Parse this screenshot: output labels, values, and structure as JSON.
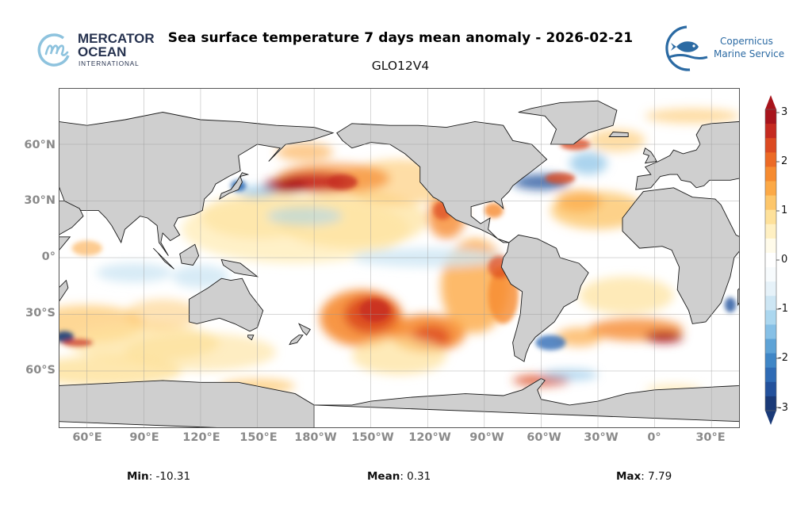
{
  "header": {
    "title": "Sea surface temperature 7 days mean anomaly - 2026-02-21",
    "subtitle": "GLO12V4"
  },
  "logos": {
    "left": {
      "line1": "MERCATOR",
      "line2": "OCEAN",
      "line3": "INTERNATIONAL",
      "icon": "mercator-m-icon"
    },
    "right": {
      "line1": "Copernicus",
      "line2": "Marine Service",
      "icon": "fish-wave-icon"
    }
  },
  "map": {
    "lat_labels": [
      "60°N",
      "30°N",
      "0°",
      "30°S",
      "60°S"
    ],
    "lon_labels": [
      "60°E",
      "90°E",
      "120°E",
      "150°E",
      "180°W",
      "150°W",
      "120°W",
      "90°W",
      "60°W",
      "30°W",
      "0°",
      "30°E"
    ],
    "colors": {
      "land": "#cfcfcf",
      "ocean_neutral": "#ffffff",
      "coast": "#111111",
      "grid": "#9a9a9a"
    }
  },
  "colorbar": {
    "ticks": [
      "3",
      "2",
      "1",
      "0",
      "-1",
      "-2",
      "-3"
    ],
    "min": -3,
    "max": 3,
    "colors": [
      "#1a3a78",
      "#23519c",
      "#2f6bb5",
      "#3f86c6",
      "#5ea3d6",
      "#86c0e6",
      "#abd7ef",
      "#cde6f4",
      "#e6f2f9",
      "#f7fbfd",
      "#ffffff",
      "#fffbea",
      "#fff0c2",
      "#fee19a",
      "#fdc66a",
      "#fca946",
      "#f68b30",
      "#ec6a25",
      "#dc4a21",
      "#c52a20",
      "#a8141c"
    ]
  },
  "stats": {
    "min_label": "Min",
    "min_value": ": -10.31",
    "mean_label": "Mean",
    "mean_value": ": 0.31",
    "max_label": "Max",
    "max_value": ": 7.79"
  }
}
